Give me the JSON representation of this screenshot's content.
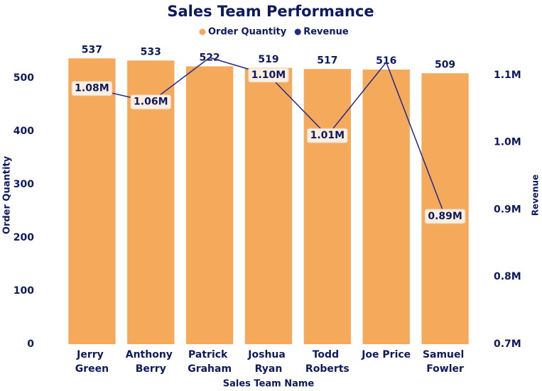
{
  "chart_data": {
    "type": "bar_line",
    "title": "Sales Team Performance",
    "x_label": "Sales Team Name",
    "y_label": "Order Quantity",
    "y2_label": "Revenue",
    "categories": [
      "Jerry Green",
      "Anthony Berry",
      "Patrick Graham",
      "Joshua Ryan",
      "Todd Roberts",
      "Joe Price",
      "Samuel Fowler"
    ],
    "series": [
      {
        "name": "Order Quantity",
        "type": "bar",
        "color": "#f5a95a",
        "values": [
          537,
          533,
          522,
          519,
          517,
          516,
          509
        ]
      },
      {
        "name": "Revenue",
        "type": "line",
        "axis": "y2",
        "color": "#1f2a8c",
        "values": [
          1080000,
          1060000,
          1126000,
          1100000,
          1010000,
          1119000,
          890000
        ],
        "value_labels": [
          "1.08M",
          "1.06M",
          null,
          "1.10M",
          "1.01M",
          null,
          "0.89M"
        ]
      }
    ],
    "ylim": [
      0,
      560
    ],
    "yticks": [
      0,
      100,
      200,
      300,
      400,
      500
    ],
    "y2lim": [
      700000,
      1143000
    ],
    "y2ticks": [
      {
        "value": 700000,
        "label": "0.7M"
      },
      {
        "value": 800000,
        "label": "0.8M"
      },
      {
        "value": 900000,
        "label": "0.9M"
      },
      {
        "value": 1000000,
        "label": "1.0M"
      },
      {
        "value": 1100000,
        "label": "1.1M"
      }
    ],
    "legend": "top",
    "grid": false
  }
}
